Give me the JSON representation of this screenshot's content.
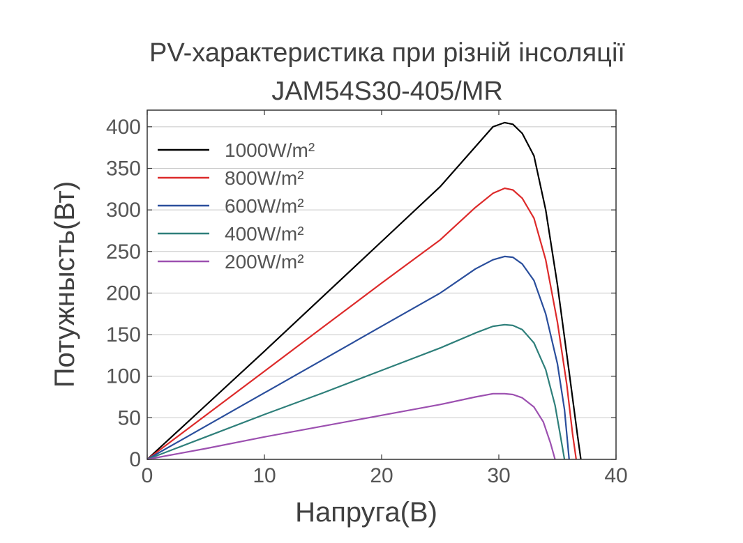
{
  "chart_data": {
    "type": "line",
    "title": "PV-характеристика при різній інсоляції",
    "subtitle": "JAM54S30-405/MR",
    "xlabel": "Напруга(В)",
    "ylabel": "Потужнысть(Вт)",
    "xlim": [
      0,
      40
    ],
    "ylim": [
      0,
      420
    ],
    "xticks": [
      0,
      10,
      20,
      30,
      40
    ],
    "yticks": [
      0,
      50,
      100,
      150,
      200,
      250,
      300,
      350,
      400
    ],
    "grid": "horizontal",
    "legend_position": "top-left",
    "series": [
      {
        "name": "1000W/m²",
        "color": "#000000",
        "points": [
          [
            0,
            0
          ],
          [
            5,
            65
          ],
          [
            10,
            130
          ],
          [
            15,
            196
          ],
          [
            20,
            262
          ],
          [
            25,
            328
          ],
          [
            28,
            376
          ],
          [
            29.5,
            400
          ],
          [
            30.5,
            405
          ],
          [
            31.2,
            403
          ],
          [
            32,
            392
          ],
          [
            33,
            365
          ],
          [
            34,
            300
          ],
          [
            35,
            210
          ],
          [
            36,
            105
          ],
          [
            36.7,
            30
          ],
          [
            37,
            0
          ]
        ]
      },
      {
        "name": "800W/m²",
        "color": "#dd2a2a",
        "points": [
          [
            0,
            0
          ],
          [
            5,
            53
          ],
          [
            10,
            106
          ],
          [
            15,
            159
          ],
          [
            20,
            212
          ],
          [
            25,
            264
          ],
          [
            28,
            303
          ],
          [
            29.5,
            320
          ],
          [
            30.5,
            326
          ],
          [
            31.2,
            324
          ],
          [
            32,
            314
          ],
          [
            33,
            290
          ],
          [
            34,
            240
          ],
          [
            35,
            165
          ],
          [
            35.8,
            90
          ],
          [
            36.3,
            30
          ],
          [
            36.6,
            0
          ]
        ]
      },
      {
        "name": "600W/m²",
        "color": "#2a4e9c",
        "points": [
          [
            0,
            0
          ],
          [
            5,
            40
          ],
          [
            10,
            80
          ],
          [
            15,
            120
          ],
          [
            20,
            160
          ],
          [
            25,
            200
          ],
          [
            28,
            229
          ],
          [
            29.5,
            240
          ],
          [
            30.5,
            244
          ],
          [
            31.2,
            243
          ],
          [
            32,
            235
          ],
          [
            33,
            215
          ],
          [
            34,
            175
          ],
          [
            35,
            115
          ],
          [
            35.6,
            60
          ],
          [
            36,
            0
          ]
        ]
      },
      {
        "name": "400W/m²",
        "color": "#2e7f7a",
        "points": [
          [
            0,
            0
          ],
          [
            5,
            27
          ],
          [
            10,
            54
          ],
          [
            15,
            80
          ],
          [
            20,
            107
          ],
          [
            25,
            134
          ],
          [
            28,
            152
          ],
          [
            29.5,
            160
          ],
          [
            30.5,
            162
          ],
          [
            31.2,
            161
          ],
          [
            32,
            156
          ],
          [
            33,
            140
          ],
          [
            34,
            108
          ],
          [
            34.8,
            65
          ],
          [
            35.3,
            25
          ],
          [
            35.6,
            0
          ]
        ]
      },
      {
        "name": "200W/m²",
        "color": "#9c50b0",
        "points": [
          [
            0,
            0
          ],
          [
            5,
            13
          ],
          [
            10,
            27
          ],
          [
            15,
            40
          ],
          [
            20,
            53
          ],
          [
            25,
            66
          ],
          [
            28,
            75
          ],
          [
            29.5,
            79
          ],
          [
            30.5,
            79
          ],
          [
            31.2,
            78
          ],
          [
            32,
            74
          ],
          [
            33,
            63
          ],
          [
            33.8,
            45
          ],
          [
            34.4,
            20
          ],
          [
            34.8,
            0
          ]
        ]
      }
    ]
  }
}
